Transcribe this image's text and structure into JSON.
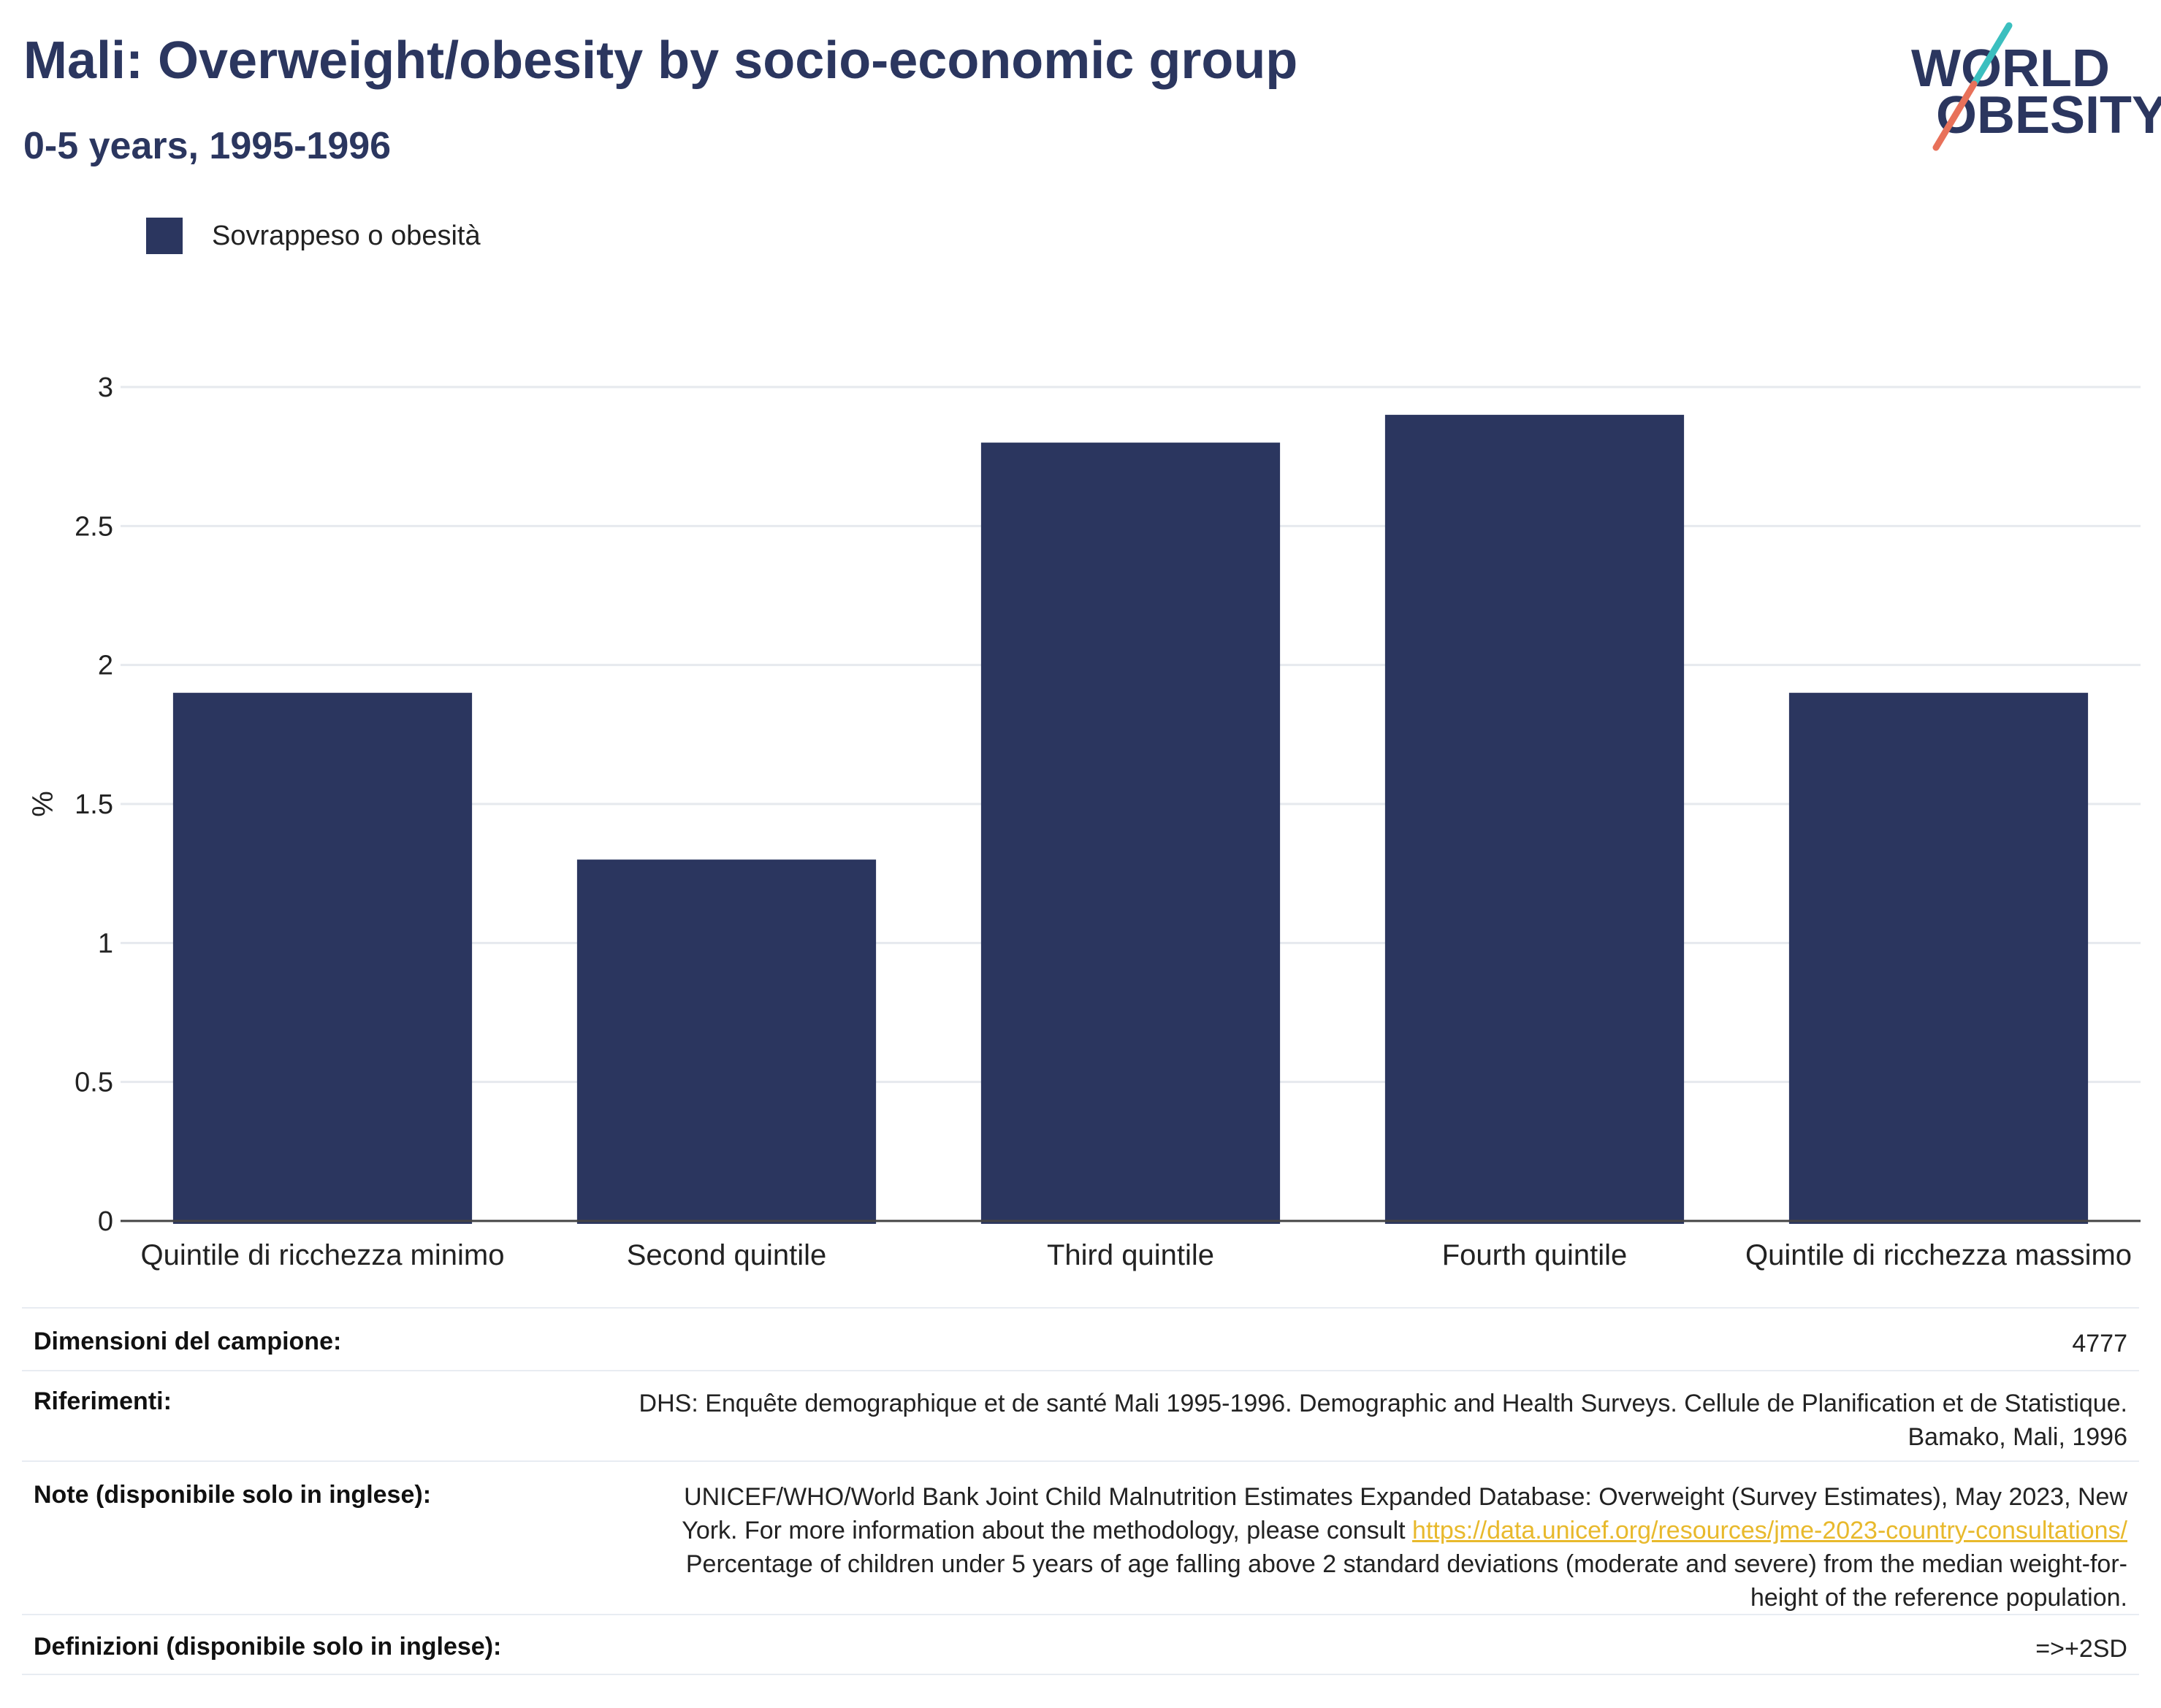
{
  "header": {
    "title": "Mali: Overweight/obesity by socio-economic group",
    "subtitle": "0-5 years, 1995-1996"
  },
  "logo": {
    "line1": "WORLD",
    "line2": "OBESITY",
    "colors": {
      "text": "#2b365f",
      "slash_top": "#3bbfbf",
      "slash_bottom": "#e8715a"
    }
  },
  "chart_data": {
    "type": "bar",
    "categories": [
      "Quintile di ricchezza minimo",
      "Second quintile",
      "Third quintile",
      "Fourth quintile",
      "Quintile di ricchezza massimo"
    ],
    "series": [
      {
        "name": "Sovrappeso o obesità",
        "values": [
          1.9,
          1.3,
          2.8,
          2.9,
          1.9
        ],
        "color": "#2b365f"
      }
    ],
    "ylabel": "%",
    "xlabel": "",
    "ylim": [
      0,
      3
    ],
    "yticks": [
      0,
      0.5,
      1,
      1.5,
      2,
      2.5,
      3
    ],
    "ytick_labels": [
      "0",
      "0.5",
      "1",
      "1.5",
      "2",
      "2.5",
      "3"
    ],
    "grid": true,
    "legend_position": "top-left"
  },
  "info": {
    "sample": {
      "label": "Dimensioni del campione:",
      "value": "4777"
    },
    "references": {
      "label": "Riferimenti:",
      "line1": "DHS: Enquête demographique et de santé Mali 1995-1996. Demographic and Health Surveys. Cellule de Planification et de Statistique.",
      "line2": "Bamako, Mali, 1996"
    },
    "notes": {
      "label": "Note (disponibile solo in inglese):",
      "line1": "UNICEF/WHO/World Bank Joint Child Malnutrition Estimates Expanded Database: Overweight (Survey Estimates), May 2023, New",
      "line2_prefix": "York. For more information about the methodology, please consult ",
      "link": "https://data.unicef.org/resources/jme-2023-country-consultations/",
      "line3": "Percentage of children under 5 years of age falling above 2 standard deviations (moderate and severe) from the median weight-for-",
      "line4": "height of the reference population."
    },
    "definitions": {
      "label": "Definizioni (disponibile solo in inglese):",
      "value": "=>+2SD"
    }
  }
}
